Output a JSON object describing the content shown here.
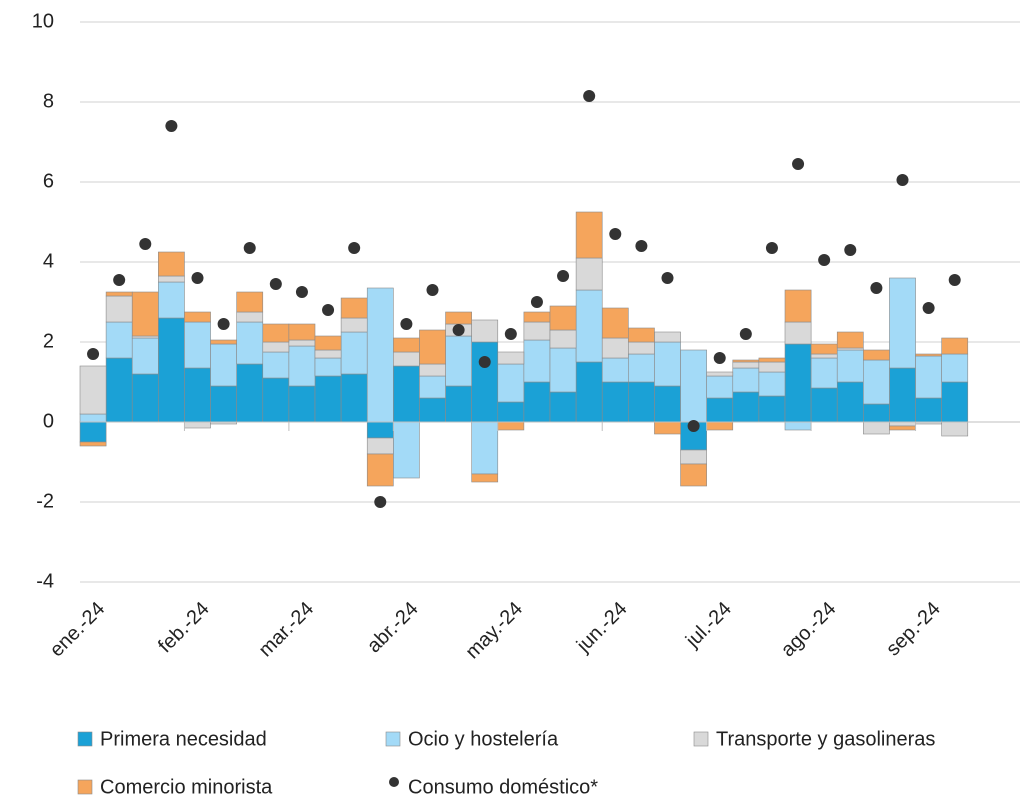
{
  "chart_data": {
    "type": "bar",
    "stacked": true,
    "categories": [
      "ene.-24",
      null,
      null,
      null,
      "feb.-24",
      null,
      null,
      null,
      "mar.-24",
      null,
      null,
      null,
      "abr.-24",
      null,
      null,
      null,
      "may.-24",
      null,
      null,
      null,
      "jun.-24",
      null,
      null,
      null,
      "jul.-24",
      null,
      null,
      null,
      "ago.-24",
      null,
      null,
      null,
      "sep.-24",
      null,
      null,
      null
    ],
    "series": [
      {
        "name": "Primera necesidad",
        "type": "bar",
        "color": "#1ba1d6",
        "values": [
          -0.5,
          1.6,
          1.2,
          2.6,
          1.35,
          0.9,
          1.45,
          1.1,
          0.9,
          1.15,
          1.2,
          -0.4,
          1.4,
          0.6,
          0.9,
          2.0,
          0.5,
          1.0,
          0.75,
          1.5,
          1.0,
          1.0,
          0.9,
          -0.7,
          0.6,
          0.75,
          0.65,
          1.95,
          0.85,
          1.0,
          0.45,
          1.35,
          0.6,
          1.0,
          null,
          null
        ]
      },
      {
        "name": "Ocio y hostelería",
        "type": "bar",
        "color": "#a3daf7",
        "values": [
          0.2,
          0.9,
          0.9,
          0.9,
          1.15,
          1.05,
          1.05,
          0.65,
          1.0,
          0.45,
          1.05,
          3.35,
          -1.4,
          0.55,
          1.25,
          -1.3,
          0.95,
          1.05,
          1.1,
          1.8,
          0.6,
          0.7,
          1.1,
          1.8,
          0.55,
          0.6,
          0.6,
          -0.2,
          0.75,
          0.8,
          1.1,
          2.25,
          1.05,
          0.7,
          null,
          null
        ]
      },
      {
        "name": "Transporte y gasolineras",
        "type": "bar",
        "color": "#d9d9d9",
        "values": [
          1.2,
          0.65,
          0.05,
          0.15,
          -0.15,
          -0.05,
          0.25,
          0.25,
          0.15,
          0.2,
          0.35,
          -0.4,
          0.35,
          0.3,
          0.3,
          0.55,
          0.3,
          0.45,
          0.45,
          0.8,
          0.5,
          0.3,
          0.25,
          -0.35,
          0.1,
          0.15,
          0.25,
          0.55,
          0.1,
          0.05,
          -0.3,
          -0.1,
          -0.05,
          -0.35,
          null,
          null
        ]
      },
      {
        "name": "Comercio minorista",
        "type": "bar",
        "color": "#f5a55c",
        "values": [
          -0.1,
          0.1,
          1.1,
          0.6,
          0.25,
          0.1,
          0.5,
          0.45,
          0.4,
          0.35,
          0.5,
          -0.8,
          0.35,
          0.85,
          0.3,
          -0.2,
          -0.2,
          0.25,
          0.6,
          1.15,
          0.75,
          0.35,
          -0.3,
          -0.55,
          -0.2,
          0.05,
          0.1,
          0.8,
          0.25,
          0.4,
          0.25,
          -0.1,
          0.05,
          0.4,
          null,
          null
        ]
      },
      {
        "name": "Consumo doméstico*",
        "type": "scatter",
        "color": "#333333",
        "values": [
          1.7,
          3.55,
          4.45,
          7.4,
          3.6,
          2.45,
          4.35,
          3.45,
          3.25,
          2.8,
          4.35,
          -2.0,
          2.45,
          3.3,
          2.3,
          1.5,
          2.2,
          3.0,
          3.65,
          8.15,
          4.7,
          4.4,
          3.6,
          -0.1,
          1.6,
          2.2,
          4.35,
          6.45,
          4.05,
          4.3,
          3.35,
          6.05,
          2.85,
          3.55,
          null,
          null
        ]
      }
    ],
    "ylim": [
      -4,
      10
    ],
    "yticks": [
      -4,
      -2,
      0,
      2,
      4,
      6,
      8,
      10
    ],
    "grid": true,
    "legend": "bottom"
  }
}
